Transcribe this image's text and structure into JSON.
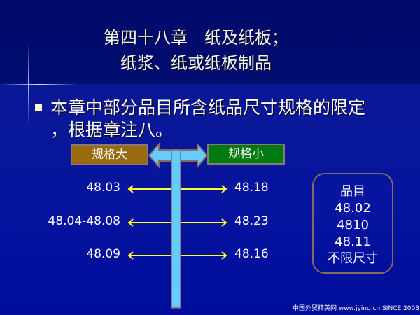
{
  "title": {
    "line1": "第四十八章　纸及纸板；",
    "line2": "纸浆、纸或纸板制品"
  },
  "bullet": {
    "line1": "本章中部分品目所含纸品尺寸规格的限定",
    "line2": "，根据章注八。"
  },
  "diagram": {
    "left_label": "规格大",
    "right_label": "规格小",
    "left_color": "#9a6a10",
    "right_color": "#007a10",
    "arrow_color": "#66ccff",
    "pointer_color": "#ffff33",
    "rows": [
      {
        "left": "48.03",
        "right": "48.18"
      },
      {
        "left": "48.04-48.08",
        "right": "48.23"
      },
      {
        "left": "48.09",
        "right": "48.16"
      }
    ]
  },
  "box": {
    "lines": [
      "品目",
      "48.02",
      "4810",
      "48.11",
      "不限尺寸"
    ]
  },
  "footer": "中国外贸精英网 www.jying.cn  SINCE 2003"
}
